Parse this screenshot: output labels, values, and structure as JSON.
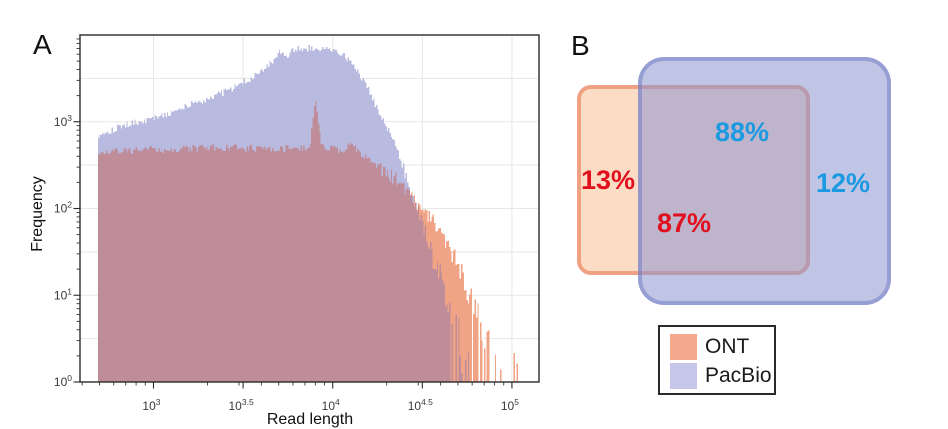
{
  "figure": {
    "panel_a_label": "A",
    "panel_b_label": "B"
  },
  "chart_data": {
    "type": "area",
    "title": "",
    "xlabel": "Read length",
    "ylabel": "Frequency",
    "x_scale": "log10",
    "y_scale": "log10",
    "x_range_log10": [
      2.59,
      5.151
    ],
    "y_range_log10": [
      0,
      4
    ],
    "x_tick_exponents": [
      "3",
      "3.5",
      "4",
      "4.5",
      "5"
    ],
    "y_tick_exponents": [
      "0",
      "1",
      "2",
      "3"
    ],
    "grid": "half-decade gridlines, light gray, log-log axes",
    "overlap_color": "#bb8c9a",
    "series": [
      {
        "name": "PacBio",
        "color": "#b4b7dd",
        "envelope_log10x_freq": [
          [
            2.69,
            700
          ],
          [
            2.8,
            870
          ],
          [
            3.0,
            1100
          ],
          [
            3.2,
            1550
          ],
          [
            3.4,
            2250
          ],
          [
            3.55,
            3200
          ],
          [
            3.63,
            4300
          ],
          [
            3.7,
            6300
          ],
          [
            3.74,
            5800
          ],
          [
            3.79,
            6800
          ],
          [
            3.9,
            7100
          ],
          [
            3.99,
            6900
          ],
          [
            4.05,
            6100
          ],
          [
            4.1,
            4700
          ],
          [
            4.16,
            3200
          ],
          [
            4.21,
            2100
          ],
          [
            4.26,
            1250
          ],
          [
            4.31,
            800
          ],
          [
            4.36,
            450
          ],
          [
            4.41,
            230
          ],
          [
            4.46,
            110
          ],
          [
            4.51,
            55
          ],
          [
            4.56,
            28
          ],
          [
            4.61,
            14
          ],
          [
            4.66,
            6
          ],
          [
            4.71,
            2.6
          ],
          [
            4.75,
            1.5
          ],
          [
            4.78,
            1
          ]
        ]
      },
      {
        "name": "ONT",
        "color": "#efa081",
        "envelope_log10x_freq": [
          [
            2.69,
            450
          ],
          [
            2.85,
            465
          ],
          [
            3.0,
            475
          ],
          [
            3.2,
            490
          ],
          [
            3.4,
            505
          ],
          [
            3.6,
            495
          ],
          [
            3.75,
            490
          ],
          [
            3.86,
            500
          ],
          [
            3.875,
            620
          ],
          [
            3.89,
            1400
          ],
          [
            3.9,
            1950
          ],
          [
            3.91,
            1250
          ],
          [
            3.93,
            600
          ],
          [
            3.95,
            505
          ],
          [
            4.0,
            485
          ],
          [
            4.06,
            468
          ],
          [
            4.1,
            555
          ],
          [
            4.13,
            470
          ],
          [
            4.18,
            385
          ],
          [
            4.24,
            310
          ],
          [
            4.3,
            260
          ],
          [
            4.37,
            200
          ],
          [
            4.43,
            145
          ],
          [
            4.5,
            96
          ],
          [
            4.55,
            75
          ],
          [
            4.6,
            55
          ],
          [
            4.65,
            33
          ],
          [
            4.7,
            19
          ],
          [
            4.75,
            11
          ],
          [
            4.8,
            6
          ],
          [
            4.85,
            3.2
          ],
          [
            4.88,
            2.2
          ],
          [
            4.95,
            1.8
          ],
          [
            5.03,
            1.5
          ]
        ]
      }
    ]
  },
  "venn": {
    "ont_fill": "#fbdcc5",
    "ont_border": "#f0a184",
    "pacbio_fill": "rgba(140,147,208,0.55)",
    "pacbio_border": "rgba(118,127,198,0.55)",
    "labels": [
      {
        "id": "ont_only",
        "text": "13%",
        "color": "#e0101f"
      },
      {
        "id": "shared_of_pacbio",
        "text": "88%",
        "color": "#1b9ae2"
      },
      {
        "id": "shared_of_ont",
        "text": "87%",
        "color": "#e0101f"
      },
      {
        "id": "pacbio_only",
        "text": "12%",
        "color": "#1b9ae2"
      }
    ]
  },
  "legend": {
    "items": [
      {
        "label": "ONT",
        "color": "#f4a98c"
      },
      {
        "label": "PacBio",
        "color": "#c6c6e8"
      }
    ]
  }
}
